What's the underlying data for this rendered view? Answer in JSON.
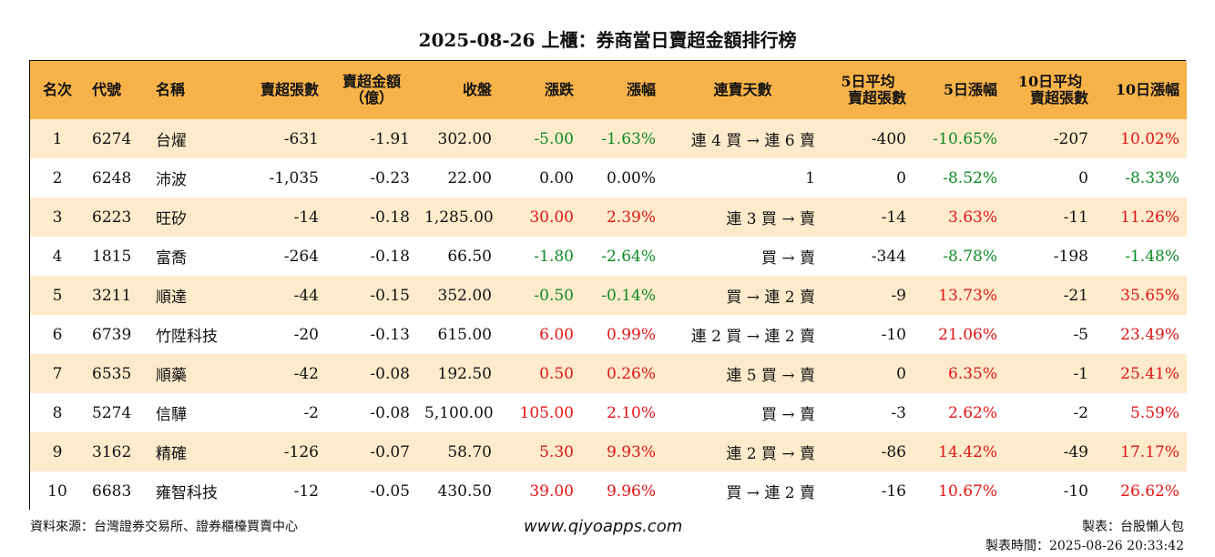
{
  "title": "2025-08-26 上櫃：券商當日賣超金額排行榜",
  "headers": {
    "rank": "名次",
    "code": "代號",
    "name": "名稱",
    "net_sell_lots": "賣超張數",
    "net_sell_amount_line1": "賣超金額",
    "net_sell_amount_line2": "（億）",
    "close": "收盤",
    "change": "漲跌",
    "change_pct": "漲幅",
    "streak": "連賣天數",
    "avg5_line1": "5日平均",
    "avg5_line2": "賣超張數",
    "pct5": "5日漲幅",
    "avg10_line1": "10日平均",
    "avg10_line2": "賣超張數",
    "pct10": "10日漲幅"
  },
  "colors": {
    "header_bg": "#f7b34a",
    "row_alt_bg": "#fdebcc",
    "up": "#e01616",
    "down": "#0d8a24"
  },
  "rows": [
    {
      "rank": "1",
      "code": "6274",
      "name": "台燿",
      "lots": "-631",
      "amount": "-1.91",
      "close": "302.00",
      "change": "-5.00",
      "change_pct": "-1.63%",
      "streak": "連 4 買 → 連 6 賣",
      "avg5": "-400",
      "pct5": "-10.65%",
      "avg10": "-207",
      "pct10": "10.02%"
    },
    {
      "rank": "2",
      "code": "6248",
      "name": "沛波",
      "lots": "-1,035",
      "amount": "-0.23",
      "close": "22.00",
      "change": "0.00",
      "change_pct": "0.00%",
      "streak": "1",
      "avg5": "0",
      "pct5": "-8.52%",
      "avg10": "0",
      "pct10": "-8.33%"
    },
    {
      "rank": "3",
      "code": "6223",
      "name": "旺矽",
      "lots": "-14",
      "amount": "-0.18",
      "close": "1,285.00",
      "change": "30.00",
      "change_pct": "2.39%",
      "streak": "連 3 買 → 賣",
      "avg5": "-14",
      "pct5": "3.63%",
      "avg10": "-11",
      "pct10": "11.26%"
    },
    {
      "rank": "4",
      "code": "1815",
      "name": "富喬",
      "lots": "-264",
      "amount": "-0.18",
      "close": "66.50",
      "change": "-1.80",
      "change_pct": "-2.64%",
      "streak": "買 → 賣",
      "avg5": "-344",
      "pct5": "-8.78%",
      "avg10": "-198",
      "pct10": "-1.48%"
    },
    {
      "rank": "5",
      "code": "3211",
      "name": "順達",
      "lots": "-44",
      "amount": "-0.15",
      "close": "352.00",
      "change": "-0.50",
      "change_pct": "-0.14%",
      "streak": "買 → 連 2 賣",
      "avg5": "-9",
      "pct5": "13.73%",
      "avg10": "-21",
      "pct10": "35.65%"
    },
    {
      "rank": "6",
      "code": "6739",
      "name": "竹陞科技",
      "lots": "-20",
      "amount": "-0.13",
      "close": "615.00",
      "change": "6.00",
      "change_pct": "0.99%",
      "streak": "連 2 買 → 連 2 賣",
      "avg5": "-10",
      "pct5": "21.06%",
      "avg10": "-5",
      "pct10": "23.49%"
    },
    {
      "rank": "7",
      "code": "6535",
      "name": "順藥",
      "lots": "-42",
      "amount": "-0.08",
      "close": "192.50",
      "change": "0.50",
      "change_pct": "0.26%",
      "streak": "連 5 買 → 賣",
      "avg5": "0",
      "pct5": "6.35%",
      "avg10": "-1",
      "pct10": "25.41%"
    },
    {
      "rank": "8",
      "code": "5274",
      "name": "信驊",
      "lots": "-2",
      "amount": "-0.08",
      "close": "5,100.00",
      "change": "105.00",
      "change_pct": "2.10%",
      "streak": "買 → 賣",
      "avg5": "-3",
      "pct5": "2.62%",
      "avg10": "-2",
      "pct10": "5.59%"
    },
    {
      "rank": "9",
      "code": "3162",
      "name": "精確",
      "lots": "-126",
      "amount": "-0.07",
      "close": "58.70",
      "change": "5.30",
      "change_pct": "9.93%",
      "streak": "連 2 買 → 賣",
      "avg5": "-86",
      "pct5": "14.42%",
      "avg10": "-49",
      "pct10": "17.17%"
    },
    {
      "rank": "10",
      "code": "6683",
      "name": "雍智科技",
      "lots": "-12",
      "amount": "-0.05",
      "close": "430.50",
      "change": "39.00",
      "change_pct": "9.96%",
      "streak": "買 → 連 2 賣",
      "avg5": "-16",
      "pct5": "10.67%",
      "avg10": "-10",
      "pct10": "26.62%"
    }
  ],
  "footer": {
    "source": "資料來源：台灣證券交易所、證券櫃檯買賣中心",
    "website": "www.qiyoapps.com",
    "maker": "製表：台股懶人包",
    "made_time": "製表時間：2025-08-26 20:33:42"
  }
}
